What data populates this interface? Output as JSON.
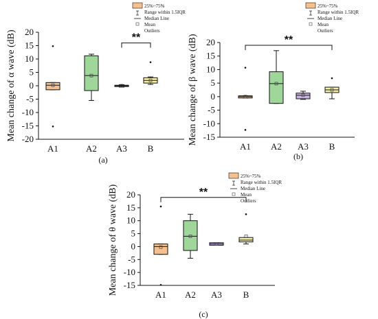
{
  "legend": {
    "iqr_box": "25%~75%",
    "range": "Range within 1.5IQR",
    "median": "Median Line",
    "mean": "Mean",
    "outliers": "Outliers"
  },
  "colors": {
    "A1": "#f6c08e",
    "A2": "#9fd69a",
    "A3": "#c8b5e2",
    "B": "#f7f0a8"
  },
  "chart_data": [
    {
      "type": "box",
      "caption": "(a)",
      "ylabel": "Mean change of α wave (dB)",
      "ylim": [
        -20,
        20
      ],
      "yticks": [
        -20,
        -15,
        -10,
        -5,
        0,
        5,
        10,
        15,
        20
      ],
      "categories": [
        "A1",
        "A2",
        "A3",
        "B"
      ],
      "boxes": [
        {
          "name": "A1",
          "whisker_low": -1.5,
          "q1": -1.5,
          "median": 0.2,
          "q3": 1.2,
          "whisker_high": 1.2,
          "mean": 0.2,
          "outliers": [
            14.8,
            -15.2
          ]
        },
        {
          "name": "A2",
          "whisker_low": -5.5,
          "q1": -1.8,
          "median": 3.8,
          "q3": 11.2,
          "whisker_high": 11.8,
          "mean": 3.8,
          "outliers": []
        },
        {
          "name": "A3",
          "whisker_low": -0.5,
          "q1": -0.3,
          "median": 0.0,
          "q3": 0.2,
          "whisker_high": 0.4,
          "mean": 0.0,
          "outliers": []
        },
        {
          "name": "B",
          "whisker_low": 0.5,
          "q1": 1.0,
          "median": 2.0,
          "q3": 3.0,
          "whisker_high": 3.3,
          "mean": 2.0,
          "outliers": [
            8.8
          ]
        }
      ],
      "significance": {
        "from": "A3",
        "to": "B",
        "y": 16,
        "label": "**"
      }
    },
    {
      "type": "box",
      "caption": "(b)",
      "ylabel": "Mean change of β wave (dB)",
      "ylim": [
        -15,
        20
      ],
      "yticks": [
        -15,
        -10,
        -5,
        0,
        5,
        10,
        15,
        20
      ],
      "categories": [
        "A1",
        "A2",
        "A3",
        "B"
      ],
      "boxes": [
        {
          "name": "A1",
          "whisker_low": -0.5,
          "q1": -0.5,
          "median": 0.0,
          "q3": 0.3,
          "whisker_high": 0.3,
          "mean": 0.0,
          "outliers": [
            10.7,
            -12.3
          ]
        },
        {
          "name": "A2",
          "whisker_low": -2.5,
          "q1": -2.5,
          "median": 4.8,
          "q3": 9.2,
          "whisker_high": 17.0,
          "mean": 4.8,
          "outliers": []
        },
        {
          "name": "A3",
          "whisker_low": -1.0,
          "q1": -0.8,
          "median": 0.5,
          "q3": 1.3,
          "whisker_high": 2.0,
          "mean": 0.5,
          "outliers": []
        },
        {
          "name": "B",
          "whisker_low": -0.8,
          "q1": 1.5,
          "median": 2.5,
          "q3": 3.5,
          "whisker_high": 3.5,
          "mean": 2.5,
          "outliers": [
            6.8
          ]
        }
      ],
      "significance": {
        "from": "A1",
        "to": "B",
        "y": 19,
        "label": "**"
      }
    },
    {
      "type": "box",
      "caption": "(c)",
      "ylabel": "Mean change of θ wave (dB)",
      "ylim": [
        -15,
        20
      ],
      "yticks": [
        -15,
        -10,
        -5,
        0,
        5,
        10,
        15,
        20
      ],
      "categories": [
        "A1",
        "A2",
        "A3",
        "B"
      ],
      "boxes": [
        {
          "name": "A1",
          "whisker_low": -3.0,
          "q1": -3.0,
          "median": 0.0,
          "q3": 1.0,
          "whisker_high": 1.0,
          "mean": -0.2,
          "outliers": [
            15.5,
            -14.8
          ]
        },
        {
          "name": "A2",
          "whisker_low": -4.5,
          "q1": -1.5,
          "median": 4.0,
          "q3": 10.0,
          "whisker_high": 12.5,
          "mean": 4.0,
          "outliers": []
        },
        {
          "name": "A3",
          "whisker_low": 0.5,
          "q1": 0.5,
          "median": 1.0,
          "q3": 1.5,
          "whisker_high": 1.5,
          "mean": 1.0,
          "outliers": []
        },
        {
          "name": "B",
          "whisker_low": 1.0,
          "q1": 1.8,
          "median": 2.5,
          "q3": 3.5,
          "whisker_high": 3.5,
          "mean": 4.0,
          "outliers": [
            12.5
          ]
        }
      ],
      "significance": {
        "from": "A1",
        "to": "B",
        "y": 19,
        "label": "**"
      }
    }
  ]
}
